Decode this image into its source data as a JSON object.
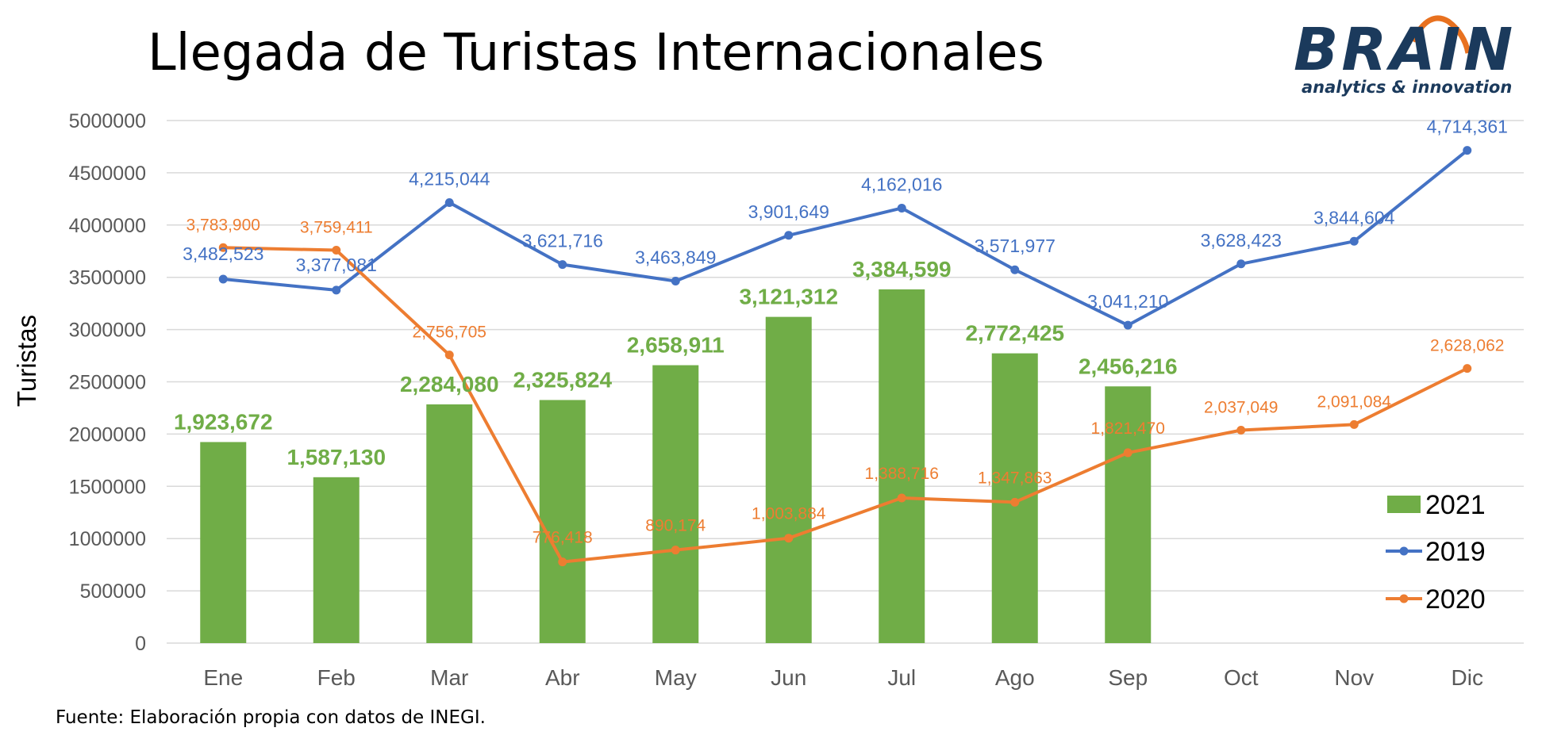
{
  "title": "Llegada de Turistas Internacionales",
  "source": "Fuente: Elaboración propia con datos de INEGI.",
  "logo": {
    "word": "BRAIN",
    "tagline": "analytics & innovation",
    "color": "#1b3a5c",
    "accent": "#e8711f"
  },
  "colors": {
    "bars_2021": "#70ad47",
    "line_2019": "#4472c4",
    "line_2020": "#ed7d31",
    "grid": "#d9d9d9"
  },
  "chart_data": {
    "type": "bar+line",
    "ylabel": "Turistas",
    "ylim": [
      0,
      5000000
    ],
    "yticks": [
      "0",
      "500000",
      "1000000",
      "1500000",
      "2000000",
      "2500000",
      "3000000",
      "3500000",
      "4000000",
      "4500000",
      "5000000"
    ],
    "yticks_values": [
      0,
      500000,
      1000000,
      1500000,
      2000000,
      2500000,
      3000000,
      3500000,
      4000000,
      4500000,
      5000000
    ],
    "categories": [
      "Ene",
      "Feb",
      "Mar",
      "Abr",
      "May",
      "Jun",
      "Jul",
      "Ago",
      "Sep",
      "Oct",
      "Nov",
      "Dic"
    ],
    "grid": true,
    "legend_position": "right",
    "series": [
      {
        "name": "2021",
        "kind": "bar",
        "color": "#70ad47",
        "values": [
          1923672,
          1587130,
          2284080,
          2325824,
          2658911,
          3121312,
          3384599,
          2772425,
          2456216,
          null,
          null,
          null
        ],
        "labels": [
          "1,923,672",
          "1,587,130",
          "2,284,080",
          "2,325,824",
          "2,658,911",
          "3,121,312",
          "3,384,599",
          "2,772,425",
          "2,456,216",
          "",
          "",
          ""
        ]
      },
      {
        "name": "2019",
        "kind": "line",
        "color": "#4472c4",
        "values": [
          3482523,
          3377081,
          4215044,
          3621716,
          3463849,
          3901649,
          4162016,
          3571977,
          3041210,
          3628423,
          3844604,
          4714361
        ],
        "labels": [
          "3,482,523",
          "3,377,081",
          "4,215,044",
          "3,621,716",
          "3,463,849",
          "3,901,649",
          "4,162,016",
          "3,571,977",
          "3,041,210",
          "3,628,423",
          "3,844,604",
          "4,714,361"
        ]
      },
      {
        "name": "2020",
        "kind": "line",
        "color": "#ed7d31",
        "values": [
          3783900,
          3759411,
          2756705,
          776418,
          890174,
          1003884,
          1388716,
          1347863,
          1821470,
          2037049,
          2091084,
          2628062
        ],
        "labels": [
          "3,783,900",
          "3,759,411",
          "2,756,705",
          "776,418",
          "890,174",
          "1,003,884",
          "1,388,716",
          "1,347,863",
          "1,821,470",
          "2,037,049",
          "2,091,084",
          "2,628,062"
        ]
      }
    ]
  }
}
